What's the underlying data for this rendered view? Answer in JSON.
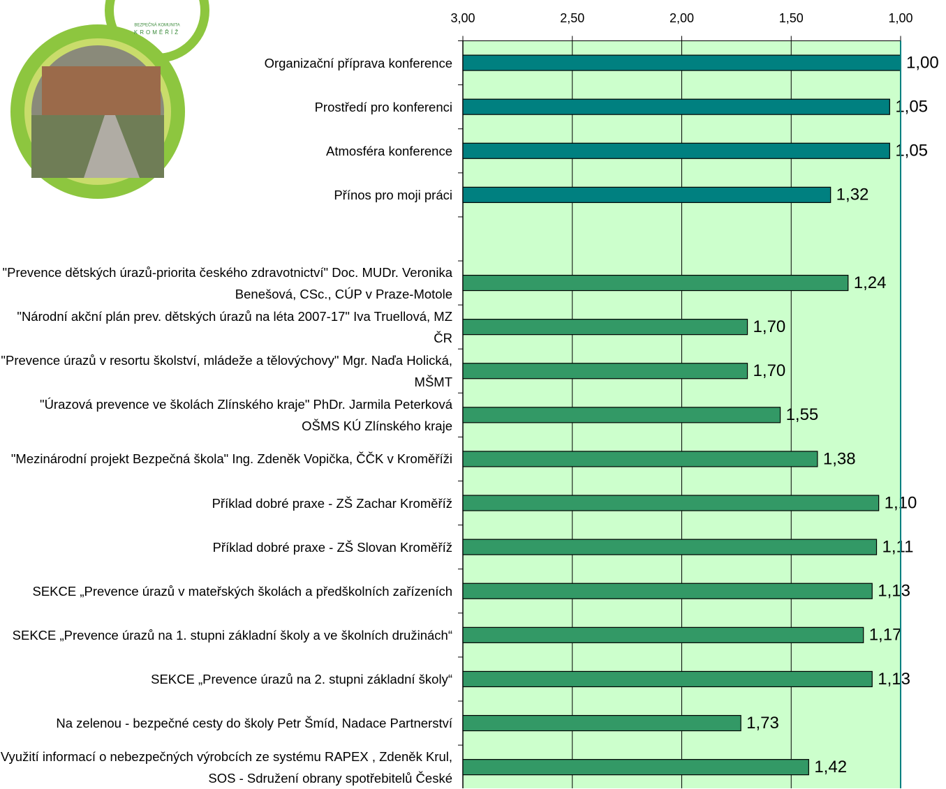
{
  "chart_data": {
    "type": "bar",
    "orientation": "horizontal",
    "categories": [
      "Organizační příprava konference",
      "Prostředí pro konferenci",
      "Atmosféra konference",
      "Přínos pro moji práci",
      null,
      "\"Prevence dětských úrazů-priorita českého zdravotnictví\" Doc. MUDr. Veronika Benešová, CSc., CÚP v Praze-Motole",
      "\"Národní akční plán prev. dětských úrazů na léta 2007-17\" Iva Truellová, MZ ČR",
      "\"Prevence úrazů v resortu školství, mládeže a tělovýchovy\" Mgr. Naďa Holická, MŠMT",
      "\"Úrazová prevence ve školách Zlínského kraje\" PhDr. Jarmila Peterková OŠMS KÚ Zlínského kraje",
      "\"Mezinárodní projekt Bezpečná škola\" Ing. Zdeněk Vopička, ČČK v Kroměříži",
      "Příklad dobré praxe - ZŠ Zachar Kroměříž",
      "Příklad dobré praxe - ZŠ Slovan Kroměříž",
      "SEKCE „Prevence úrazů v mateřských školách a předškolních zařízeních",
      "SEKCE „Prevence úrazů na 1. stupni základní školy a ve školních družinách“",
      "SEKCE  „Prevence úrazů na 2. stupni základní školy“",
      "Na zelenou - bezpečné cesty do školy  Petr Šmíd, Nadace Partnerství",
      "Využití informací o nebezpečných výrobcích ze systému RAPEX , Zdeněk Krul, SOS - Sdružení obrany spotřebitelů České"
    ],
    "values": [
      1.0,
      1.05,
      1.05,
      1.32,
      null,
      1.24,
      1.7,
      1.7,
      1.55,
      1.38,
      1.1,
      1.11,
      1.13,
      1.17,
      1.13,
      1.73,
      1.42
    ],
    "value_labels": [
      "1,00",
      "1,05",
      "1,05",
      "1,32",
      null,
      "1,24",
      "1,70",
      "1,70",
      "1,55",
      "1,38",
      "1,10",
      "1,11",
      "1,13",
      "1,17",
      "1,13",
      "1,73",
      "1,42"
    ],
    "colors": [
      "#008080",
      "#008080",
      "#008080",
      "#008080",
      null,
      "#339966",
      "#339966",
      "#339966",
      "#339966",
      "#339966",
      "#339966",
      "#339966",
      "#339966",
      "#339966",
      "#339966",
      "#339966",
      "#339966"
    ],
    "xlim": [
      3,
      1
    ],
    "xticks": [
      {
        "value": 3,
        "label": "3,00"
      },
      {
        "value": 2.5,
        "label": "2,50"
      },
      {
        "value": 2,
        "label": "2,00"
      },
      {
        "value": 1.5,
        "label": "1,50"
      },
      {
        "value": 1,
        "label": "1,00"
      }
    ],
    "grid": true,
    "plot_background": "#ccffcc"
  },
  "logo": {
    "lines": [
      "BEZPEČNÁ  KOMUNITA",
      "KROMĚŘÍŽ"
    ]
  }
}
